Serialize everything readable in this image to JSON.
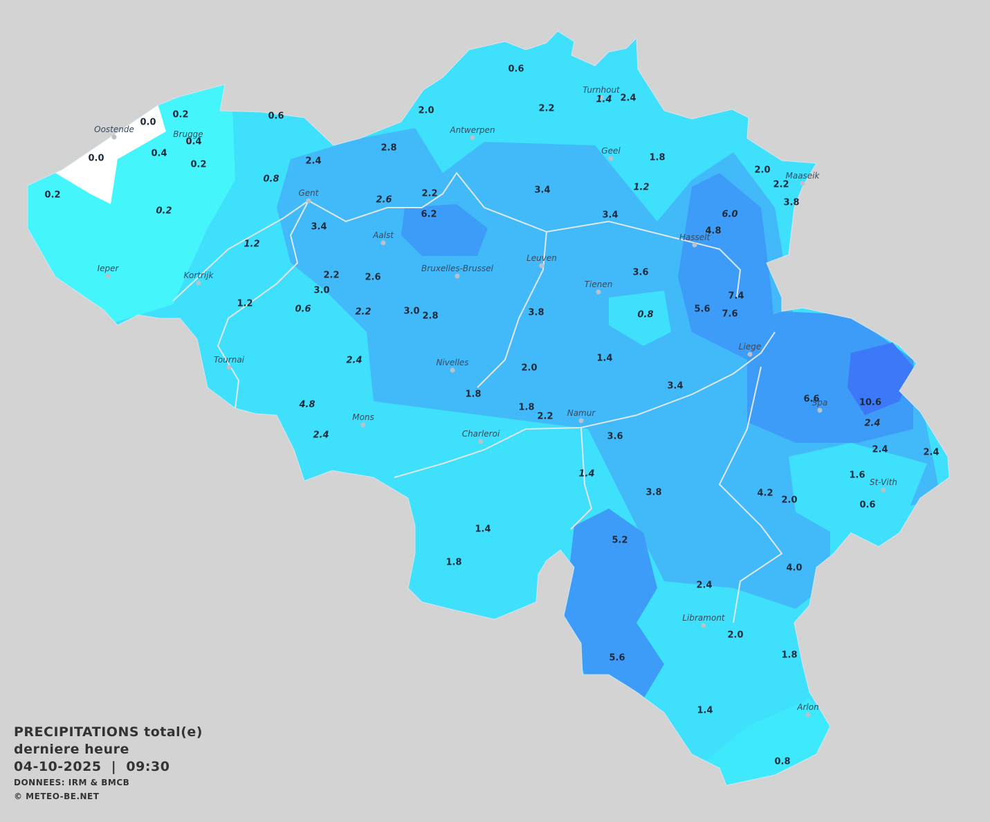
{
  "legend": {
    "title": "PRECIPITATIONS total(e)",
    "subtitle": "derniere heure",
    "datetime": "04-10-2025  |  09:30",
    "source": "DONNEES: IRM & BMCB",
    "copyright": "© METEO-BE.NET"
  },
  "cities": [
    "Oostende",
    "Brugge",
    "Gent",
    "Ieper",
    "Kortrijk",
    "Tournai",
    "Antwerpen",
    "Turnhout",
    "Geel",
    "Maaseik",
    "Hasselt",
    "Aalst",
    "Leuven",
    "Bruxelles-Brussel",
    "Tienen",
    "Liege",
    "Nivelles",
    "Mons",
    "Namur",
    "Charleroi",
    "Spa",
    "St-Vith",
    "Libramont",
    "Arlon"
  ],
  "values": [
    {
      "text": "0.0",
      "italic": false
    },
    {
      "text": "0.2",
      "italic": false
    },
    {
      "text": "0.6",
      "italic": false
    },
    {
      "text": "0.0",
      "italic": false
    },
    {
      "text": "0.4",
      "italic": false
    },
    {
      "text": "0.4",
      "italic": false
    },
    {
      "text": "0.2",
      "italic": false
    },
    {
      "text": "0.2",
      "italic": false
    },
    {
      "text": "0.8",
      "italic": true
    },
    {
      "text": "0.2",
      "italic": true
    },
    {
      "text": "2.4",
      "italic": false
    },
    {
      "text": "2.8",
      "italic": false
    },
    {
      "text": "2.0",
      "italic": false
    },
    {
      "text": "0.6",
      "italic": false
    },
    {
      "text": "2.2",
      "italic": false
    },
    {
      "text": "1.4",
      "italic": true
    },
    {
      "text": "2.4",
      "italic": false
    },
    {
      "text": "1.8",
      "italic": false
    },
    {
      "text": "2.0",
      "italic": false
    },
    {
      "text": "2.2",
      "italic": false
    },
    {
      "text": "3.8",
      "italic": false
    },
    {
      "text": "1.2",
      "italic": true
    },
    {
      "text": "3.4",
      "italic": false
    },
    {
      "text": "2.2",
      "italic": false
    },
    {
      "text": "2.6",
      "italic": true
    },
    {
      "text": "6.2",
      "italic": false
    },
    {
      "text": "3.4",
      "italic": false
    },
    {
      "text": "6.0",
      "italic": true
    },
    {
      "text": "4.8",
      "italic": false
    },
    {
      "text": "3.4",
      "italic": false
    },
    {
      "text": "1.2",
      "italic": true
    },
    {
      "text": "3.6",
      "italic": false
    },
    {
      "text": "2.2",
      "italic": false
    },
    {
      "text": "2.6",
      "italic": false
    },
    {
      "text": "3.0",
      "italic": false
    },
    {
      "text": "7.4",
      "italic": false
    },
    {
      "text": "1.2",
      "italic": false
    },
    {
      "text": "0.6",
      "italic": true
    },
    {
      "text": "2.2",
      "italic": true
    },
    {
      "text": "3.0",
      "italic": false
    },
    {
      "text": "2.8",
      "italic": false
    },
    {
      "text": "3.8",
      "italic": false
    },
    {
      "text": "0.8",
      "italic": true
    },
    {
      "text": "5.6",
      "italic": false
    },
    {
      "text": "7.6",
      "italic": false
    },
    {
      "text": "2.4",
      "italic": true
    },
    {
      "text": "1.4",
      "italic": false
    },
    {
      "text": "2.0",
      "italic": false
    },
    {
      "text": "1.8",
      "italic": false
    },
    {
      "text": "3.4",
      "italic": false
    },
    {
      "text": "6.6",
      "italic": false
    },
    {
      "text": "10.6",
      "italic": false
    },
    {
      "text": "2.4",
      "italic": true
    },
    {
      "text": "1.8",
      "italic": false
    },
    {
      "text": "2.2",
      "italic": false
    },
    {
      "text": "4.8",
      "italic": true
    },
    {
      "text": "2.4",
      "italic": true
    },
    {
      "text": "3.6",
      "italic": false
    },
    {
      "text": "2.4",
      "italic": false
    },
    {
      "text": "2.4",
      "italic": false
    },
    {
      "text": "1.4",
      "italic": true
    },
    {
      "text": "1.6",
      "italic": false
    },
    {
      "text": "3.8",
      "italic": false
    },
    {
      "text": "4.2",
      "italic": false
    },
    {
      "text": "2.0",
      "italic": false
    },
    {
      "text": "0.6",
      "italic": false
    },
    {
      "text": "1.4",
      "italic": false
    },
    {
      "text": "5.2",
      "italic": false
    },
    {
      "text": "1.8",
      "italic": false
    },
    {
      "text": "4.0",
      "italic": false
    },
    {
      "text": "2.4",
      "italic": false
    },
    {
      "text": "2.0",
      "italic": false
    },
    {
      "text": "1.8",
      "italic": false
    },
    {
      "text": "5.6",
      "italic": false
    },
    {
      "text": "1.4",
      "italic": false
    },
    {
      "text": "0.8",
      "italic": false
    }
  ]
}
